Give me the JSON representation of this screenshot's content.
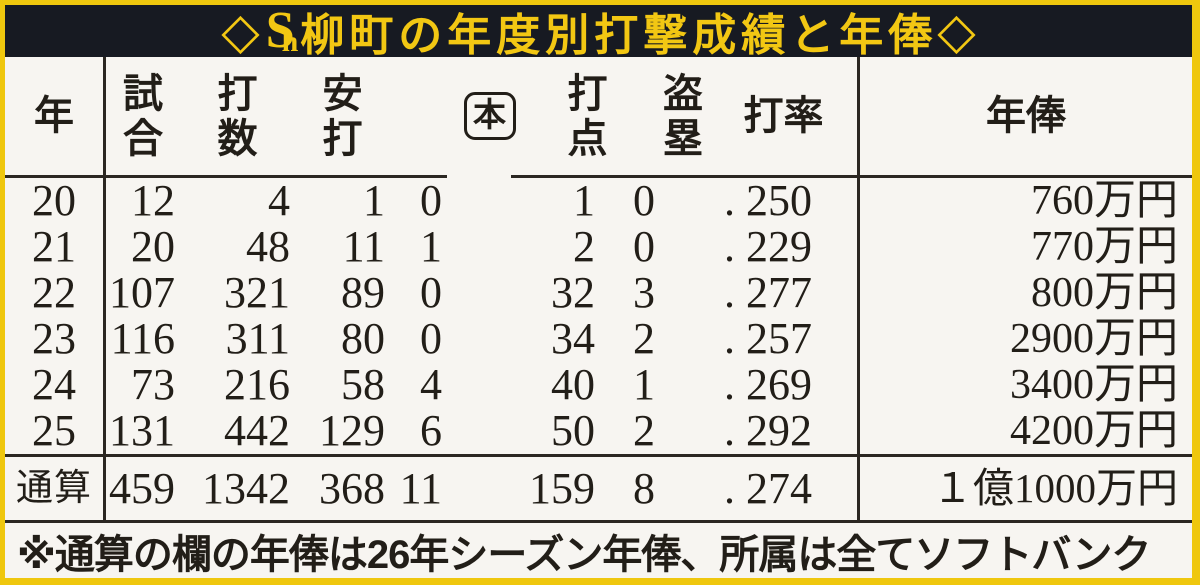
{
  "title": {
    "prefix_diamond": "◇",
    "team_logo_text_s": "S",
    "team_logo_text_h": "h",
    "text": "柳町の年度別打撃成績と年俸",
    "suffix_diamond": "◇"
  },
  "colors": {
    "frame_yellow": "#efc70e",
    "title_bar_black": "#171a22",
    "title_text_yellow": "#f2c713",
    "paper": "#f7f5f1",
    "ink": "#221e18"
  },
  "table": {
    "headers": {
      "year": "年",
      "games": "試\n合",
      "at_bats": "打\n数",
      "hits": "安\n打",
      "home_runs": "本",
      "rbi": "打\n点",
      "steals": "盗\n塁",
      "average": "打率",
      "salary": "年俸"
    },
    "rows": [
      {
        "year": "20",
        "games": "12",
        "at_bats": "4",
        "hits": "1",
        "hr": "0",
        "rbi": "1",
        "sb": "0",
        "avg": ". 250",
        "salary": "760万円"
      },
      {
        "year": "21",
        "games": "20",
        "at_bats": "48",
        "hits": "11",
        "hr": "1",
        "rbi": "2",
        "sb": "0",
        "avg": ". 229",
        "salary": "770万円"
      },
      {
        "year": "22",
        "games": "107",
        "at_bats": "321",
        "hits": "89",
        "hr": "0",
        "rbi": "32",
        "sb": "3",
        "avg": ". 277",
        "salary": "800万円"
      },
      {
        "year": "23",
        "games": "116",
        "at_bats": "311",
        "hits": "80",
        "hr": "0",
        "rbi": "34",
        "sb": "2",
        "avg": ". 257",
        "salary": "2900万円"
      },
      {
        "year": "24",
        "games": "73",
        "at_bats": "216",
        "hits": "58",
        "hr": "4",
        "rbi": "40",
        "sb": "1",
        "avg": ". 269",
        "salary": "3400万円"
      },
      {
        "year": "25",
        "games": "131",
        "at_bats": "442",
        "hits": "129",
        "hr": "6",
        "rbi": "50",
        "sb": "2",
        "avg": ". 292",
        "salary": "4200万円"
      }
    ],
    "totals": {
      "label": "通算",
      "games": "459",
      "at_bats": "1342",
      "hits": "368",
      "hr": "11",
      "rbi": "159",
      "sb": "8",
      "avg": ". 274",
      "salary": "１億1000万円"
    }
  },
  "footnote": "※通算の欄の年俸は26年シーズン年俸、所属は全てソフトバンク"
}
